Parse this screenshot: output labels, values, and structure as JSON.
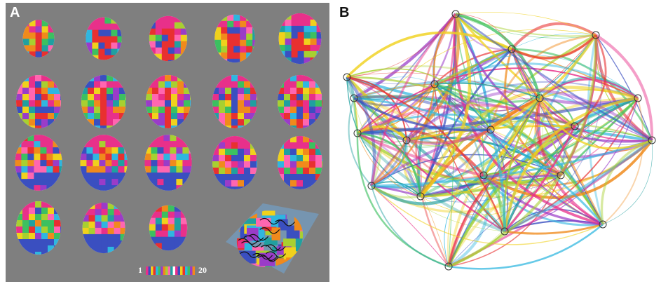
{
  "panels": [
    {
      "label": "A",
      "colorbar": {
        "min_label": "1",
        "max_label": "20"
      }
    },
    {
      "label": "B"
    }
  ]
}
